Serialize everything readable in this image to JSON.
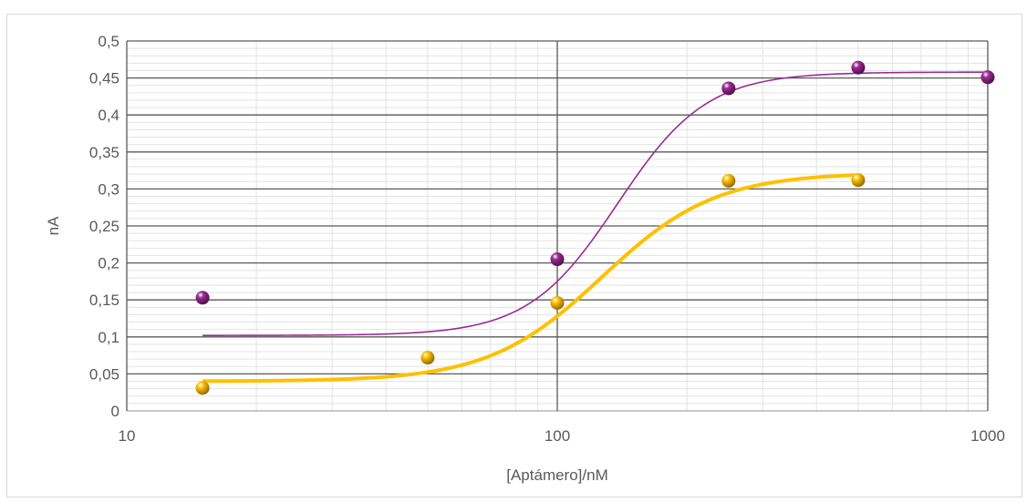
{
  "chart_data": {
    "type": "scatter",
    "title": "",
    "xlabel": "[Aptámero]/nM",
    "ylabel": "nA",
    "xscale": "log",
    "xlim": [
      10,
      1000
    ],
    "ylim": [
      0,
      0.5
    ],
    "x_ticks": [
      "10",
      "100",
      "1000"
    ],
    "y_ticks": [
      "0",
      "0,05",
      "0,1",
      "0,15",
      "0,2",
      "0,25",
      "0,3",
      "0,35",
      "0,4",
      "0,45",
      "0,5"
    ],
    "grid": "major and minor",
    "legend": "none",
    "series": [
      {
        "color": "#9b2a94",
        "points": [
          [
            15,
            0.153
          ],
          [
            100,
            0.205
          ],
          [
            250,
            0.436
          ],
          [
            500,
            0.464
          ],
          [
            1000,
            0.451
          ]
        ],
        "fit": {
          "x_from": 15,
          "x_to": 1000,
          "bottom": 0.102,
          "top": 0.458,
          "ec50": 138,
          "hill": 4.2
        }
      },
      {
        "color": "#ffc000",
        "points": [
          [
            15,
            0.031
          ],
          [
            50,
            0.072
          ],
          [
            100,
            0.146
          ],
          [
            250,
            0.311
          ],
          [
            500,
            0.312
          ]
        ],
        "fit": {
          "x_from": 15,
          "x_to": 500,
          "bottom": 0.04,
          "top": 0.322,
          "ec50": 127,
          "hill": 3.3
        }
      }
    ]
  }
}
